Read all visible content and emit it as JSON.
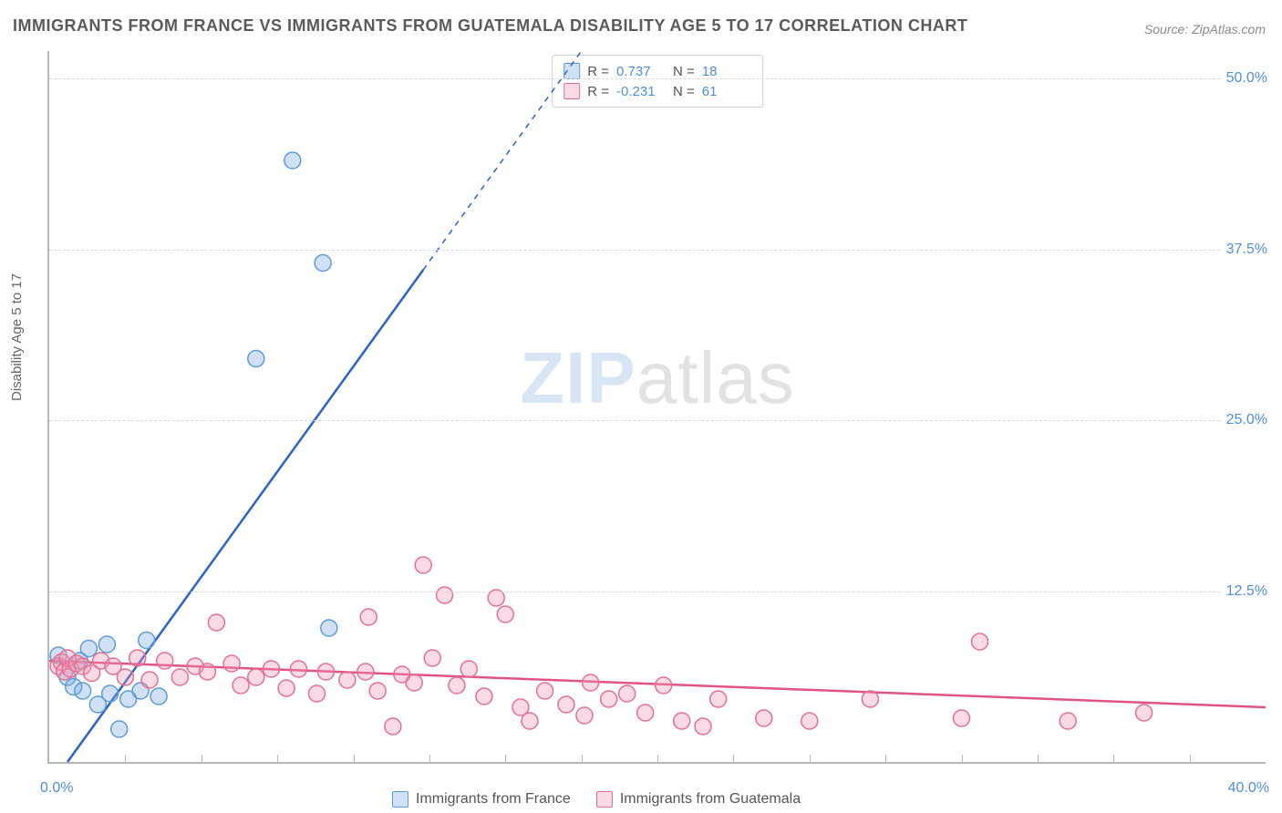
{
  "title": "IMMIGRANTS FROM FRANCE VS IMMIGRANTS FROM GUATEMALA DISABILITY AGE 5 TO 17 CORRELATION CHART",
  "source": "Source: ZipAtlas.com",
  "ylabel": "Disability Age 5 to 17",
  "watermark_a": "ZIP",
  "watermark_b": "atlas",
  "chart": {
    "type": "scatter",
    "xlim": [
      0,
      40
    ],
    "ylim": [
      0,
      52
    ],
    "x_tickstep": 2.5,
    "x_labels": [
      {
        "v": 0,
        "t": "0.0%"
      },
      {
        "v": 40,
        "t": "40.0%"
      }
    ],
    "y_gridlines": [
      12.5,
      25,
      37.5,
      50
    ],
    "y_labels": [
      {
        "v": 12.5,
        "t": "12.5%"
      },
      {
        "v": 25,
        "t": "25.0%"
      },
      {
        "v": 37.5,
        "t": "37.5%"
      },
      {
        "v": 50,
        "t": "50.0%"
      }
    ],
    "background_color": "#ffffff",
    "grid_color": "#d9d9d9",
    "axis_color": "#b8b8b8",
    "marker_radius": 9,
    "marker_stroke_width": 1.5,
    "trend_width_solid": 2.5,
    "trend_width_dash": 1.5,
    "series": [
      {
        "key": "france",
        "label": "Immigrants from France",
        "fill": "rgba(120,170,225,0.35)",
        "stroke": "#5c9bd8",
        "trend_color": "#2a62c9",
        "R": "0.737",
        "N": "18",
        "trend": {
          "x1": 0.6,
          "y1": 0,
          "x2": 17.5,
          "y2": 52,
          "solid_until_x": 12.3
        },
        "points": [
          [
            0.3,
            7.8
          ],
          [
            0.6,
            6.2
          ],
          [
            0.8,
            5.5
          ],
          [
            1.0,
            7.4
          ],
          [
            1.1,
            5.2
          ],
          [
            1.3,
            8.3
          ],
          [
            1.6,
            4.2
          ],
          [
            1.9,
            8.6
          ],
          [
            2.0,
            5.0
          ],
          [
            2.3,
            2.4
          ],
          [
            2.6,
            4.6
          ],
          [
            3.0,
            5.2
          ],
          [
            3.2,
            8.9
          ],
          [
            3.6,
            4.8
          ],
          [
            6.8,
            29.5
          ],
          [
            8.0,
            44.0
          ],
          [
            9.0,
            36.5
          ],
          [
            9.2,
            9.8
          ]
        ]
      },
      {
        "key": "guatemala",
        "label": "Immigrants from Guatemala",
        "fill": "rgba(240,150,175,0.35)",
        "stroke": "#e36f95",
        "trend_color": "#e15385",
        "R": "-0.231",
        "N": "61",
        "trend": {
          "x1": 0,
          "y1": 7.4,
          "x2": 40,
          "y2": 4.0,
          "solid_until_x": 40
        },
        "points": [
          [
            0.3,
            7.0
          ],
          [
            0.4,
            7.3
          ],
          [
            0.5,
            6.6
          ],
          [
            0.6,
            7.6
          ],
          [
            0.7,
            6.8
          ],
          [
            0.9,
            7.2
          ],
          [
            1.1,
            7.0
          ],
          [
            1.4,
            6.5
          ],
          [
            1.7,
            7.4
          ],
          [
            2.1,
            7.0
          ],
          [
            2.5,
            6.2
          ],
          [
            2.9,
            7.6
          ],
          [
            3.3,
            6.0
          ],
          [
            3.8,
            7.4
          ],
          [
            4.3,
            6.2
          ],
          [
            4.8,
            7.0
          ],
          [
            5.2,
            6.6
          ],
          [
            5.5,
            10.2
          ],
          [
            6.0,
            7.2
          ],
          [
            6.3,
            5.6
          ],
          [
            6.8,
            6.2
          ],
          [
            7.3,
            6.8
          ],
          [
            7.8,
            5.4
          ],
          [
            8.2,
            6.8
          ],
          [
            8.8,
            5.0
          ],
          [
            9.1,
            6.6
          ],
          [
            9.8,
            6.0
          ],
          [
            10.4,
            6.6
          ],
          [
            10.5,
            10.6
          ],
          [
            10.8,
            5.2
          ],
          [
            11.3,
            2.6
          ],
          [
            11.6,
            6.4
          ],
          [
            12.0,
            5.8
          ],
          [
            12.3,
            14.4
          ],
          [
            12.6,
            7.6
          ],
          [
            13.0,
            12.2
          ],
          [
            13.4,
            5.6
          ],
          [
            13.8,
            6.8
          ],
          [
            14.3,
            4.8
          ],
          [
            14.7,
            12.0
          ],
          [
            15.0,
            10.8
          ],
          [
            15.5,
            4.0
          ],
          [
            15.8,
            3.0
          ],
          [
            16.3,
            5.2
          ],
          [
            17.0,
            4.2
          ],
          [
            17.6,
            3.4
          ],
          [
            17.8,
            5.8
          ],
          [
            18.4,
            4.6
          ],
          [
            19.0,
            5.0
          ],
          [
            19.6,
            3.6
          ],
          [
            20.2,
            5.6
          ],
          [
            20.8,
            3.0
          ],
          [
            21.5,
            2.6
          ],
          [
            22.0,
            4.6
          ],
          [
            23.5,
            3.2
          ],
          [
            25.0,
            3.0
          ],
          [
            27.0,
            4.6
          ],
          [
            30.0,
            3.2
          ],
          [
            30.6,
            8.8
          ],
          [
            33.5,
            3.0
          ],
          [
            36.0,
            3.6
          ]
        ]
      }
    ]
  },
  "legend_top": {
    "r_label": "R =",
    "n_label": "N ="
  },
  "colors": {
    "title": "#5a5a5a",
    "tick_text": "#4f8edc"
  }
}
